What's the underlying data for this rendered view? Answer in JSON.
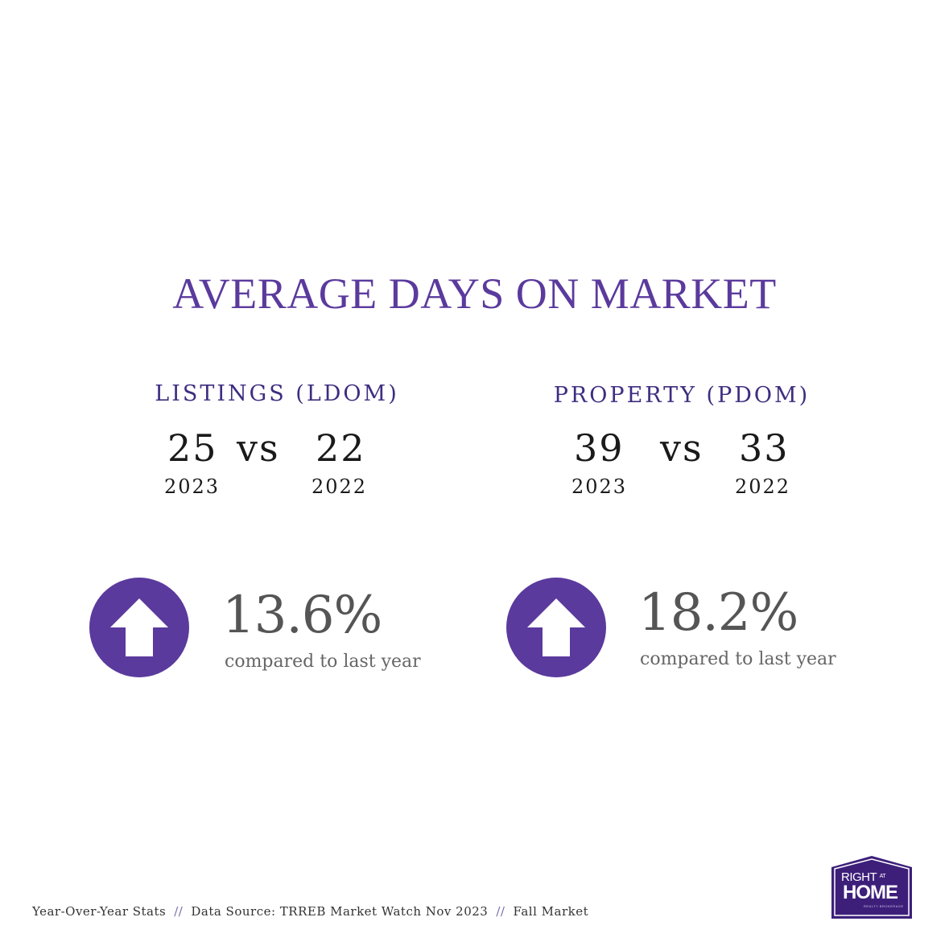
{
  "title": "AVERAGE DAYS ON MARKET",
  "listings": {
    "heading": "LISTINGS (LDOM)",
    "value_2023": "25",
    "vs": "vs",
    "value_2022": "22",
    "year_a": "2023",
    "year_b": "2022",
    "change": "13.6%",
    "change_note": "compared to last year",
    "direction_icon": "arrow-up-icon"
  },
  "property": {
    "heading": "PROPERTY (PDOM)",
    "value_2023": "39",
    "vs": "vs",
    "value_2022": "33",
    "year_a": "2023",
    "year_b": "2022",
    "change": "18.2%",
    "change_note": "compared to last year",
    "direction_icon": "arrow-up-icon"
  },
  "footer": {
    "part1": "Year-Over-Year Stats",
    "sep": "//",
    "part2": "Data Source: TRREB Market Watch Nov 2023",
    "part3": "Fall Market"
  },
  "logo": {
    "line1": "RIGHT",
    "at": "AT",
    "line2": "HOME",
    "tagline": "REALTY BROKERAGE"
  },
  "colors": {
    "accent": "#5b3a9d",
    "heading": "#3e2d80",
    "text": "#1a1a1a",
    "muted": "#666666"
  }
}
